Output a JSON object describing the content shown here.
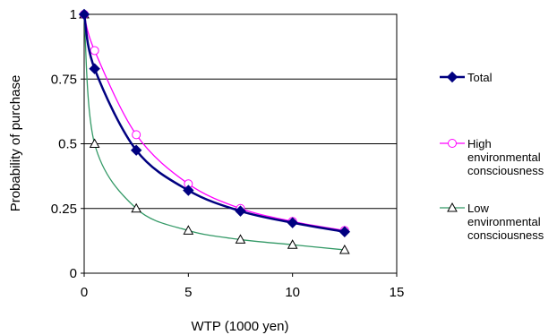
{
  "chart_data": {
    "type": "line",
    "title": "",
    "xlabel": "WTP (1000 yen)",
    "ylabel": "Probability of purchase",
    "xlim": [
      0,
      15
    ],
    "ylim": [
      0,
      1
    ],
    "x_ticks": [
      0,
      5,
      10,
      15
    ],
    "y_ticks": [
      0,
      0.25,
      0.5,
      0.75,
      1
    ],
    "x_tick_labels": [
      "0",
      "5",
      "10",
      "15"
    ],
    "y_tick_labels": [
      "0",
      "0.25",
      "0.5",
      "0.75",
      "1"
    ],
    "grid": "horizontal",
    "legend_position": "right",
    "series": [
      {
        "name": "Total",
        "legend_lines": [
          "Total"
        ],
        "color": "#000080",
        "marker": "diamond",
        "x": [
          0,
          0.5,
          2.5,
          5,
          7.5,
          10,
          12.5
        ],
        "y": [
          1,
          0.79,
          0.475,
          0.32,
          0.24,
          0.195,
          0.16
        ]
      },
      {
        "name": "High environmental consciousness",
        "legend_lines": [
          "High",
          "environmental",
          "consciousness"
        ],
        "color": "#ff00ff",
        "marker": "circle",
        "x": [
          0,
          0.5,
          2.5,
          5,
          7.5,
          10,
          12.5
        ],
        "y": [
          1,
          0.86,
          0.535,
          0.345,
          0.25,
          0.2,
          0.165
        ]
      },
      {
        "name": "Low environmental consciousness",
        "legend_lines": [
          "Low",
          "environmental",
          "consciousness"
        ],
        "color": "#339966",
        "marker": "triangle",
        "x": [
          0,
          0.5,
          2.5,
          5,
          7.5,
          10,
          12.5
        ],
        "y": [
          1,
          0.5,
          0.25,
          0.165,
          0.13,
          0.11,
          0.09
        ]
      }
    ]
  }
}
